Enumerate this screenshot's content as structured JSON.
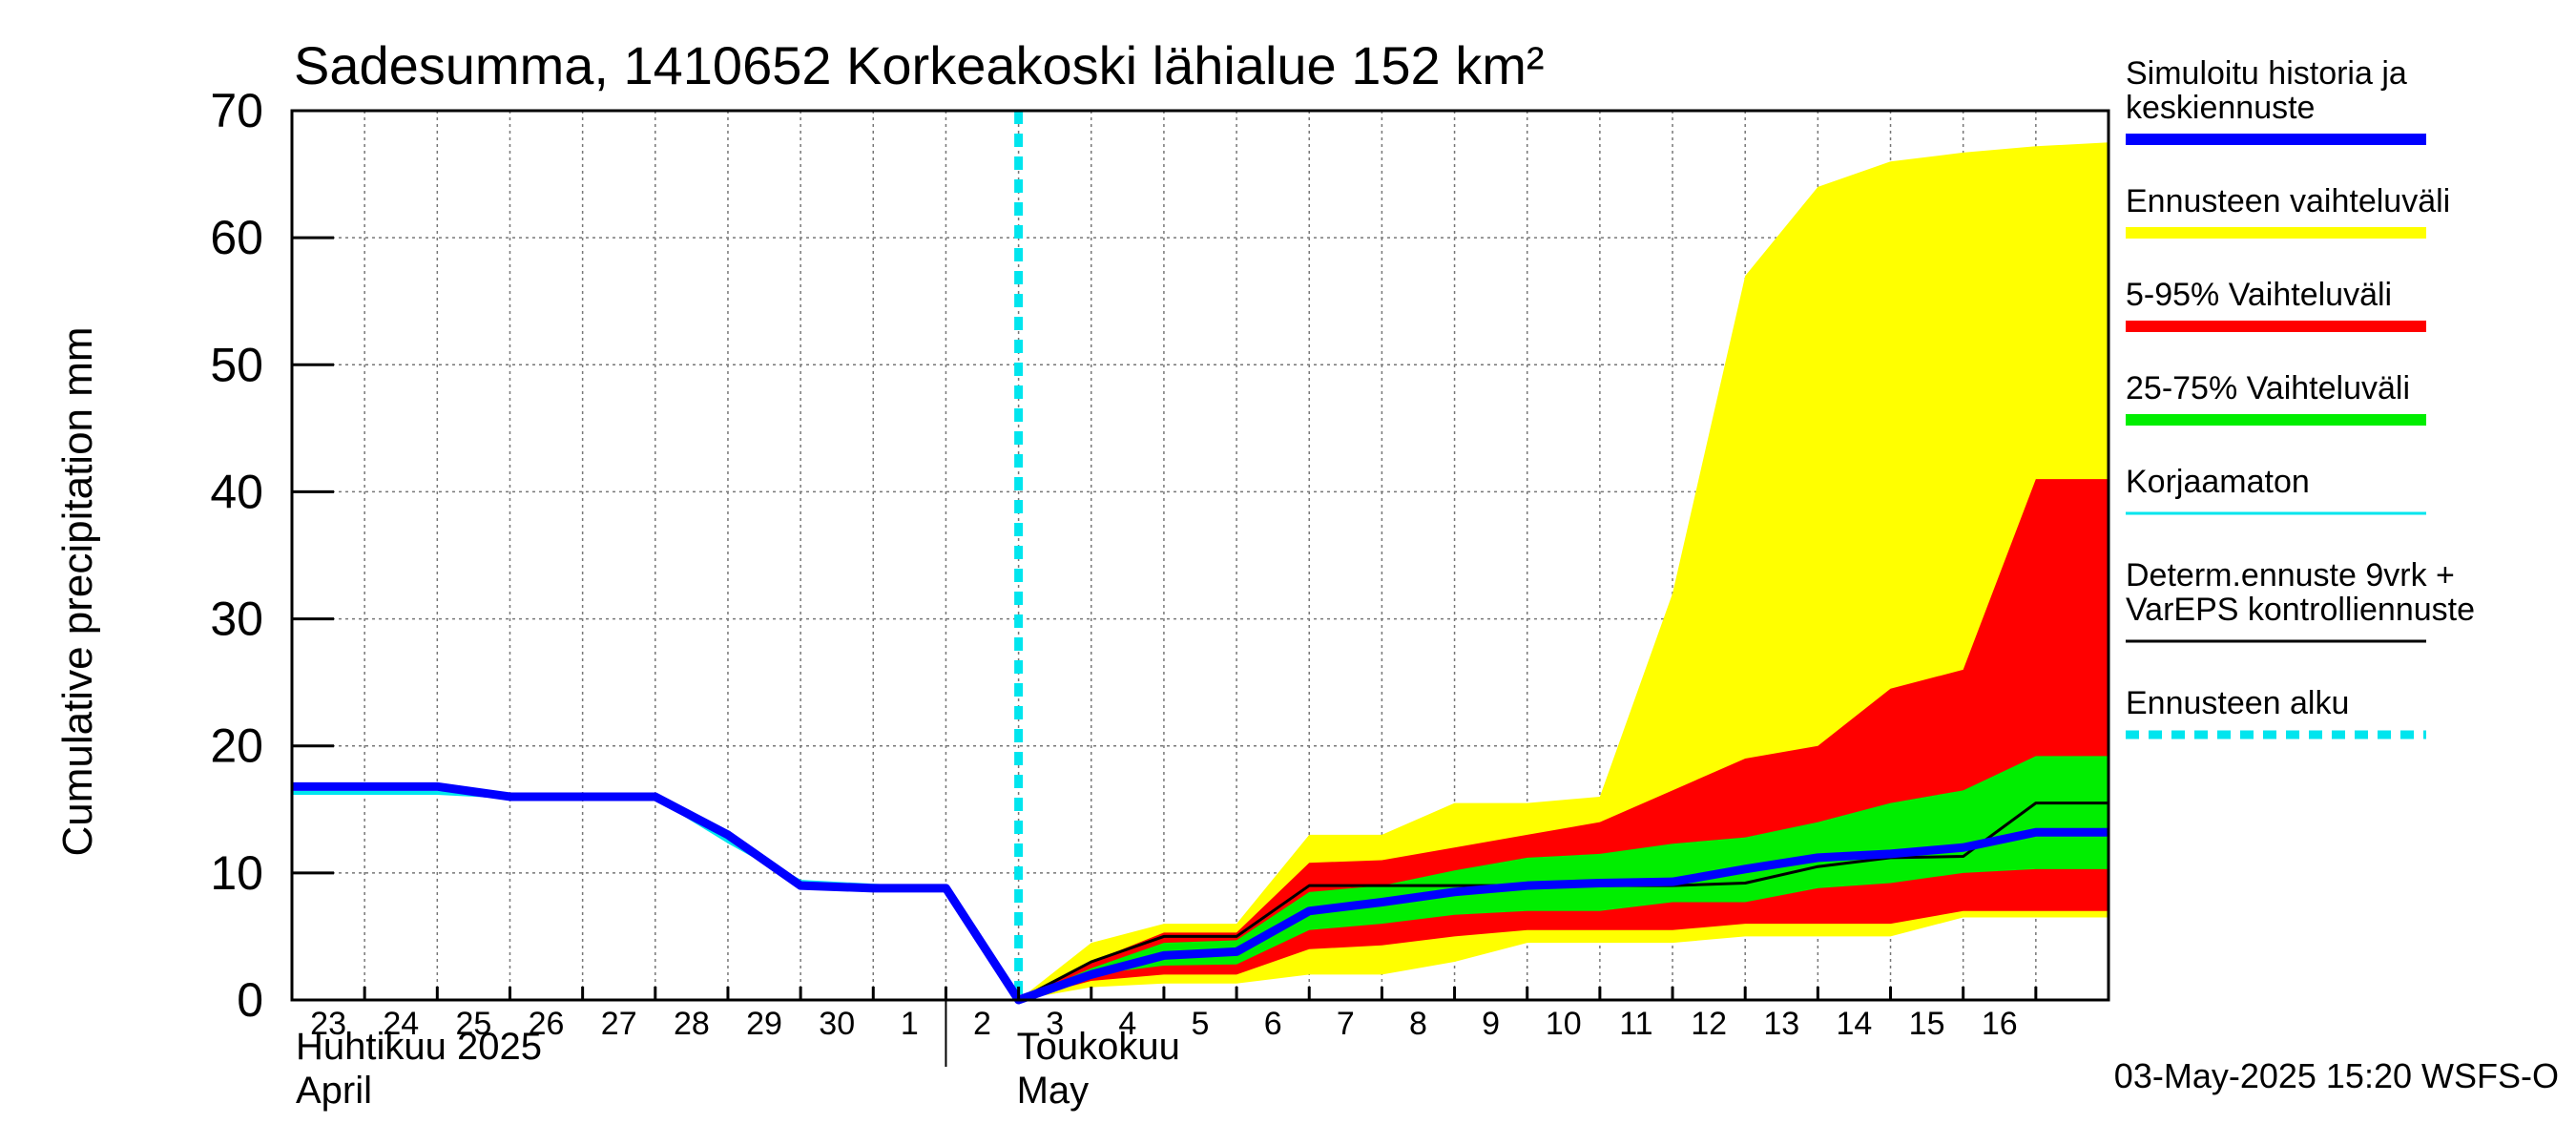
{
  "chart_data": {
    "type": "area",
    "title": "Sadesumma, 1410652 Korkeakoski lähialue 152 km²",
    "ylabel": "Cumulative precipitation   mm",
    "ylim": [
      0,
      70
    ],
    "yticks": [
      0,
      10,
      20,
      30,
      40,
      50,
      60,
      70
    ],
    "x_tick_labels": [
      "23",
      "24",
      "25",
      "26",
      "27",
      "28",
      "29",
      "30",
      "1",
      "2",
      "3",
      "4",
      "5",
      "6",
      "7",
      "8",
      "9",
      "10",
      "11",
      "12",
      "13",
      "14",
      "15",
      "16"
    ],
    "month_labels": [
      {
        "fi": "Huhtikuu  2025",
        "en": "April"
      },
      {
        "fi": "Toukokuu",
        "en": "May"
      }
    ],
    "forecast_start": "2025-05-02",
    "footer": "03-May-2025 15:20 WSFS-O",
    "grid": true,
    "legend_position": "right",
    "dates": [
      "2025-04-22",
      "2025-04-23",
      "2025-04-24",
      "2025-04-25",
      "2025-04-26",
      "2025-04-27",
      "2025-04-28",
      "2025-04-29",
      "2025-04-30",
      "2025-05-01",
      "2025-05-02",
      "2025-05-03",
      "2025-05-04",
      "2025-05-05",
      "2025-05-06",
      "2025-05-07",
      "2025-05-08",
      "2025-05-09",
      "2025-05-10",
      "2025-05-11",
      "2025-05-12",
      "2025-05-13",
      "2025-05-14",
      "2025-05-15",
      "2025-05-16"
    ],
    "bands": [
      {
        "name": "Ennusteen vaihteluväli",
        "color": "#ffff00",
        "start": "2025-05-02",
        "dates": [
          "2025-05-02",
          "2025-05-03",
          "2025-05-04",
          "2025-05-05",
          "2025-05-06",
          "2025-05-07",
          "2025-05-08",
          "2025-05-09",
          "2025-05-10",
          "2025-05-11",
          "2025-05-12",
          "2025-05-13",
          "2025-05-14",
          "2025-05-15",
          "2025-05-16",
          "2025-05-16T24"
        ],
        "upper": [
          0,
          4.5,
          6.0,
          6.0,
          13.0,
          13.0,
          15.5,
          15.5,
          16.0,
          32.0,
          57.0,
          64.0,
          66.0,
          66.7,
          67.2,
          67.5
        ],
        "lower": [
          0,
          1.0,
          1.3,
          1.3,
          2.0,
          2.0,
          3.0,
          4.5,
          4.5,
          4.5,
          5.0,
          5.0,
          5.0,
          6.5,
          6.5,
          6.5
        ]
      },
      {
        "name": "5-95% Vaihteluväli",
        "color": "#ff0000",
        "dates": [
          "2025-05-02",
          "2025-05-03",
          "2025-05-04",
          "2025-05-05",
          "2025-05-06",
          "2025-05-07",
          "2025-05-08",
          "2025-05-09",
          "2025-05-10",
          "2025-05-11",
          "2025-05-12",
          "2025-05-13",
          "2025-05-14",
          "2025-05-15",
          "2025-05-16",
          "2025-05-16T24"
        ],
        "upper": [
          0,
          3.0,
          5.3,
          5.3,
          10.8,
          11.0,
          12.0,
          13.0,
          14.0,
          16.5,
          19.0,
          20.0,
          24.5,
          26.0,
          41.0,
          41.0
        ],
        "lower": [
          0,
          1.5,
          2.0,
          2.0,
          4.0,
          4.3,
          5.0,
          5.5,
          5.5,
          5.5,
          6.0,
          6.0,
          6.0,
          7.0,
          7.0,
          7.0
        ]
      },
      {
        "name": "25-75% Vaihteluväli",
        "color": "#00ee00",
        "dates": [
          "2025-05-02",
          "2025-05-03",
          "2025-05-04",
          "2025-05-05",
          "2025-05-06",
          "2025-05-07",
          "2025-05-08",
          "2025-05-09",
          "2025-05-10",
          "2025-05-11",
          "2025-05-12",
          "2025-05-13",
          "2025-05-14",
          "2025-05-15",
          "2025-05-16",
          "2025-05-16T24"
        ],
        "upper": [
          0,
          2.5,
          4.5,
          4.7,
          8.5,
          9.0,
          10.2,
          11.2,
          11.5,
          12.3,
          12.8,
          14.0,
          15.5,
          16.5,
          19.2,
          19.2
        ],
        "lower": [
          0,
          2.0,
          2.7,
          2.8,
          5.5,
          6.0,
          6.7,
          7.0,
          7.0,
          7.7,
          7.7,
          8.8,
          9.2,
          10.0,
          10.3,
          10.3
        ]
      }
    ],
    "series": [
      {
        "name": "Simuloitu historia ja keskiennuste",
        "color": "#0000ff",
        "x": [
          "2025-04-22",
          "2025-04-23",
          "2025-04-24",
          "2025-04-25",
          "2025-04-26",
          "2025-04-27",
          "2025-04-28",
          "2025-04-29",
          "2025-04-30",
          "2025-05-01",
          "2025-05-02",
          "2025-05-03",
          "2025-05-04",
          "2025-05-05",
          "2025-05-06",
          "2025-05-07",
          "2025-05-08",
          "2025-05-09",
          "2025-05-10",
          "2025-05-11",
          "2025-05-12",
          "2025-05-13",
          "2025-05-14",
          "2025-05-15",
          "2025-05-16",
          "2025-05-16T24"
        ],
        "values": [
          16.8,
          16.8,
          16.8,
          16.0,
          16.0,
          16.0,
          13.0,
          9.0,
          8.8,
          8.8,
          0,
          2.0,
          3.5,
          3.8,
          7.0,
          7.7,
          8.5,
          9.0,
          9.2,
          9.3,
          10.3,
          11.2,
          11.5,
          12.0,
          13.2,
          13.2
        ]
      },
      {
        "name": "Korjaamaton",
        "color": "#00e5ee",
        "x": [
          "2025-04-22",
          "2025-04-23",
          "2025-04-24",
          "2025-04-25",
          "2025-04-26",
          "2025-04-27",
          "2025-04-28",
          "2025-04-29",
          "2025-04-30",
          "2025-05-01"
        ],
        "values": [
          16.3,
          16.3,
          16.3,
          16.0,
          16.0,
          16.0,
          12.5,
          9.3,
          9.0,
          8.7
        ]
      },
      {
        "name": "Determ.ennuste 9vrk + VarEPS kontrolliennuste",
        "color": "#000000",
        "x": [
          "2025-05-02",
          "2025-05-03",
          "2025-05-04",
          "2025-05-05",
          "2025-05-06",
          "2025-05-07",
          "2025-05-08",
          "2025-05-09",
          "2025-05-10",
          "2025-05-11",
          "2025-05-12",
          "2025-05-13",
          "2025-05-14",
          "2025-05-15",
          "2025-05-16",
          "2025-05-16T24"
        ],
        "values": [
          0,
          3.0,
          5.0,
          5.0,
          9.0,
          9.0,
          9.0,
          9.0,
          9.0,
          9.0,
          9.2,
          10.5,
          11.2,
          11.3,
          15.5,
          15.5
        ]
      }
    ],
    "forecast_line": {
      "name": "Ennusteen alku",
      "color": "#00e5ee"
    }
  },
  "legend": [
    {
      "lines": [
        "Simuloitu historia ja",
        "keskiennuste"
      ],
      "color": "#0000ff",
      "style": "thick"
    },
    {
      "lines": [
        "Ennusteen vaihteluväli"
      ],
      "color": "#ffff00",
      "style": "thick"
    },
    {
      "lines": [
        "5-95% Vaihteluväli"
      ],
      "color": "#ff0000",
      "style": "thick"
    },
    {
      "lines": [
        "25-75% Vaihteluväli"
      ],
      "color": "#00ee00",
      "style": "thick"
    },
    {
      "lines": [
        "Korjaamaton"
      ],
      "color": "#00e5ee",
      "style": "thin"
    },
    {
      "lines": [
        "Determ.ennuste 9vrk +",
        "VarEPS kontrolliennuste"
      ],
      "color": "#000000",
      "style": "thin"
    },
    {
      "lines": [
        "Ennusteen alku"
      ],
      "color": "#00e5ee",
      "style": "dashed"
    }
  ]
}
